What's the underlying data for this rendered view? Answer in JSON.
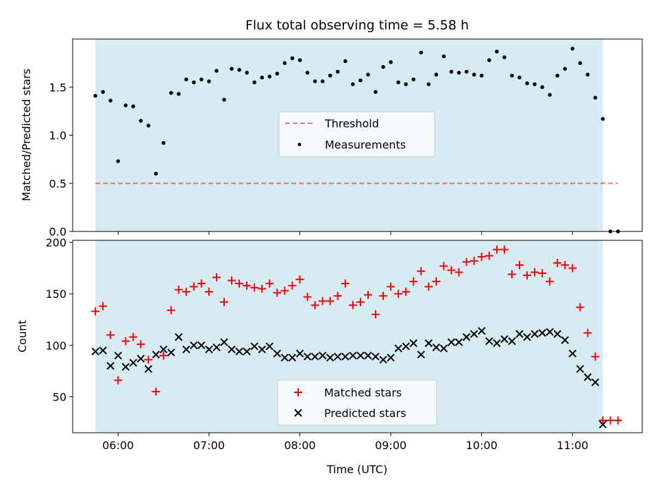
{
  "chart_data": {
    "type": "scatter",
    "title": "Flux total observing time = 5.58 h",
    "xlabel": "Time (UTC)",
    "x_unit": "hours UTC",
    "xlim": [
      "05:30",
      "11:46"
    ],
    "x_ticks": [
      "06:00",
      "07:00",
      "08:00",
      "09:00",
      "10:00",
      "11:00"
    ],
    "observing_window": [
      "05:45",
      "11:20"
    ],
    "colors": {
      "observing_window": "#add8e6",
      "threshold": "#ff0000",
      "measurements": "#000000",
      "matched": "#ff0000",
      "predicted": "#000000"
    },
    "panels": [
      {
        "ylabel": "Matched/Predicted stars",
        "ylim": [
          0,
          2.0
        ],
        "y_ticks": [
          "0.0",
          "0.5",
          "1.0",
          "1.5"
        ],
        "show_x_tick_labels": false,
        "legend_position": "center",
        "series": [
          {
            "name": "Threshold",
            "style": "dashed-line",
            "x": [
              "05:45",
              "11:30"
            ],
            "y": [
              0.5,
              0.5
            ]
          },
          {
            "name": "Measurements",
            "style": "dot",
            "x": [
              "05:45",
              "05:50",
              "05:55",
              "06:00",
              "06:05",
              "06:10",
              "06:15",
              "06:20",
              "06:25",
              "06:30",
              "06:35",
              "06:40",
              "06:45",
              "06:50",
              "06:55",
              "07:00",
              "07:05",
              "07:10",
              "07:15",
              "07:20",
              "07:25",
              "07:30",
              "07:35",
              "07:40",
              "07:45",
              "07:50",
              "07:55",
              "08:00",
              "08:05",
              "08:10",
              "08:15",
              "08:20",
              "08:25",
              "08:30",
              "08:35",
              "08:40",
              "08:45",
              "08:50",
              "08:55",
              "09:00",
              "09:05",
              "09:10",
              "09:15",
              "09:20",
              "09:25",
              "09:30",
              "09:35",
              "09:40",
              "09:45",
              "09:50",
              "09:55",
              "10:00",
              "10:05",
              "10:10",
              "10:15",
              "10:20",
              "10:25",
              "10:30",
              "10:35",
              "10:40",
              "10:45",
              "10:50",
              "10:55",
              "11:00",
              "11:05",
              "11:10",
              "11:15",
              "11:20",
              "11:25",
              "11:30"
            ],
            "y": [
              1.41,
              1.45,
              1.36,
              0.73,
              1.31,
              1.3,
              1.15,
              1.1,
              0.6,
              0.92,
              1.44,
              1.43,
              1.58,
              1.55,
              1.58,
              1.56,
              1.67,
              1.37,
              1.69,
              1.68,
              1.65,
              1.55,
              1.6,
              1.61,
              1.64,
              1.75,
              1.8,
              1.78,
              1.65,
              1.56,
              1.56,
              1.62,
              1.66,
              1.77,
              1.53,
              1.57,
              1.63,
              1.45,
              1.71,
              1.76,
              1.55,
              1.53,
              1.58,
              1.86,
              1.53,
              1.63,
              1.82,
              1.66,
              1.65,
              1.66,
              1.63,
              1.62,
              1.78,
              1.87,
              1.81,
              1.62,
              1.6,
              1.54,
              1.53,
              1.5,
              1.42,
              1.62,
              1.69,
              1.9,
              1.75,
              1.63,
              1.39,
              1.17,
              0.0,
              0.0
            ]
          }
        ]
      },
      {
        "ylabel": "Count",
        "ylim": [
          15,
          202
        ],
        "y_ticks": [
          "50",
          "100",
          "150",
          "200"
        ],
        "show_x_tick_labels": true,
        "legend_position": "lower center",
        "series": [
          {
            "name": "Matched stars",
            "style": "plus",
            "x": [
              "05:45",
              "05:50",
              "05:55",
              "06:00",
              "06:05",
              "06:10",
              "06:15",
              "06:20",
              "06:25",
              "06:30",
              "06:35",
              "06:40",
              "06:45",
              "06:50",
              "06:55",
              "07:00",
              "07:05",
              "07:10",
              "07:15",
              "07:20",
              "07:25",
              "07:30",
              "07:35",
              "07:40",
              "07:45",
              "07:50",
              "07:55",
              "08:00",
              "08:05",
              "08:10",
              "08:15",
              "08:20",
              "08:25",
              "08:30",
              "08:35",
              "08:40",
              "08:45",
              "08:50",
              "08:55",
              "09:00",
              "09:05",
              "09:10",
              "09:15",
              "09:20",
              "09:25",
              "09:30",
              "09:35",
              "09:40",
              "09:45",
              "09:50",
              "09:55",
              "10:00",
              "10:05",
              "10:10",
              "10:15",
              "10:20",
              "10:25",
              "10:30",
              "10:35",
              "10:40",
              "10:45",
              "10:50",
              "10:55",
              "11:00",
              "11:05",
              "11:10",
              "11:15",
              "11:20",
              "11:25",
              "11:30"
            ],
            "y": [
              133,
              138,
              110,
              66,
              104,
              108,
              101,
              86,
              55,
              90,
              134,
              154,
              152,
              157,
              160,
              152,
              166,
              142,
              163,
              160,
              158,
              156,
              155,
              160,
              151,
              153,
              158,
              164,
              147,
              139,
              143,
              143,
              148,
              160,
              139,
              142,
              149,
              130,
              148,
              157,
              150,
              152,
              162,
              172,
              157,
              162,
              177,
              173,
              171,
              181,
              182,
              186,
              187,
              193,
              193,
              169,
              178,
              168,
              171,
              170,
              162,
              180,
              178,
              175,
              137,
              112,
              89,
              27,
              27,
              27
            ]
          },
          {
            "name": "Predicted stars",
            "style": "cross",
            "x": [
              "05:45",
              "05:50",
              "05:55",
              "06:00",
              "06:05",
              "06:10",
              "06:15",
              "06:20",
              "06:25",
              "06:30",
              "06:35",
              "06:40",
              "06:45",
              "06:50",
              "06:55",
              "07:00",
              "07:05",
              "07:10",
              "07:15",
              "07:20",
              "07:25",
              "07:30",
              "07:35",
              "07:40",
              "07:45",
              "07:50",
              "07:55",
              "08:00",
              "08:05",
              "08:10",
              "08:15",
              "08:20",
              "08:25",
              "08:30",
              "08:35",
              "08:40",
              "08:45",
              "08:50",
              "08:55",
              "09:00",
              "09:05",
              "09:10",
              "09:15",
              "09:20",
              "09:25",
              "09:30",
              "09:35",
              "09:40",
              "09:45",
              "09:50",
              "09:55",
              "10:00",
              "10:05",
              "10:10",
              "10:15",
              "10:20",
              "10:25",
              "10:30",
              "10:35",
              "10:40",
              "10:45",
              "10:50",
              "10:55",
              "11:00",
              "11:05",
              "11:10",
              "11:15",
              "11:20"
            ],
            "y": [
              94,
              95,
              80,
              90,
              79,
              83,
              87,
              77,
              91,
              96,
              93,
              108,
              96,
              100,
              100,
              96,
              98,
              103,
              96,
              94,
              94,
              99,
              96,
              99,
              92,
              88,
              88,
              92,
              89,
              89,
              90,
              88,
              89,
              89,
              90,
              90,
              90,
              89,
              86,
              88,
              97,
              99,
              102,
              91,
              102,
              98,
              97,
              103,
              103,
              108,
              111,
              114,
              104,
              102,
              106,
              104,
              111,
              108,
              111,
              112,
              113,
              111,
              105,
              92,
              77,
              69,
              64,
              23
            ]
          }
        ]
      }
    ]
  }
}
